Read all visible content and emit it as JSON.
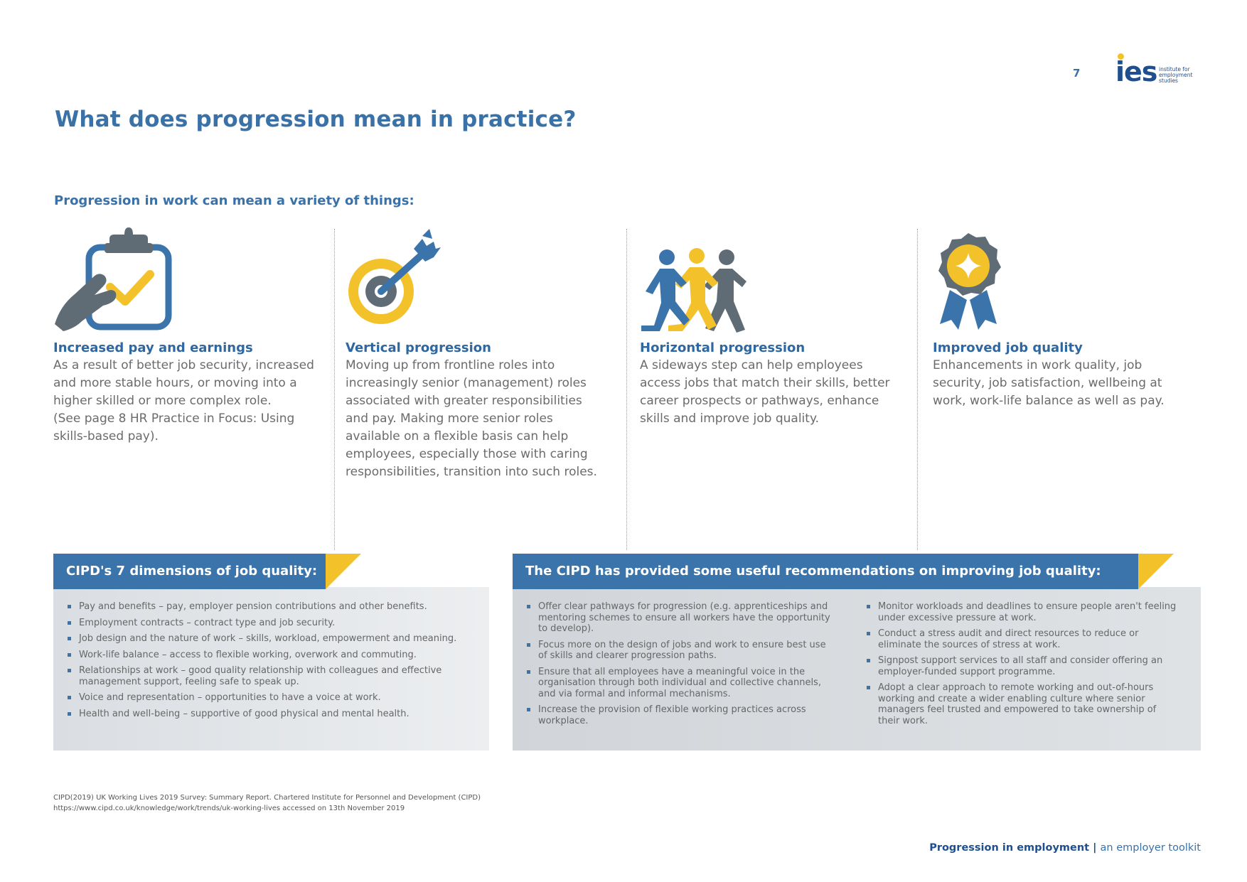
{
  "header": {
    "page_number": "7",
    "logo": {
      "letters": "ies",
      "subtitle": "institute for employment studies"
    }
  },
  "title": "What does progression mean in practice?",
  "intro": "Progression in work can mean a variety of things:",
  "columns": [
    {
      "icon": "clipboard-check-icon",
      "heading": "Increased pay and earnings",
      "body": [
        "As a result of better job security, increased and more stable hours, or moving into a higher skilled or more complex role.",
        "(See page 8 HR Practice in Focus: Using skills-based pay)."
      ]
    },
    {
      "icon": "target-arrow-icon",
      "heading": "Vertical progression",
      "body": [
        "Moving up from frontline roles into increasingly senior (management) roles associated with greater responsibilities and pay. Making more senior roles available on a flexible basis can help employees, especially those with caring responsibilities, transition into such roles."
      ]
    },
    {
      "icon": "people-running-icon",
      "heading": "Horizontal progression",
      "body": [
        "A sideways step can help employees access jobs that match their skills, better career prospects or pathways, enhance skills and improve job quality."
      ]
    },
    {
      "icon": "award-rosette-icon",
      "heading": "Improved job quality",
      "body": [
        "Enhancements in work quality, job security, job satisfaction, wellbeing at work, work-life balance as well as pay."
      ]
    }
  ],
  "dimensions_box": {
    "title": "CIPD's 7 dimensions of job quality:",
    "items": [
      "Pay and benefits – pay, employer pension contributions and other benefits.",
      "Employment  contracts – contract type and job security.",
      "Job design and the nature of work – skills, workload, empowerment and meaning.",
      "Work-life balance – access to flexible working, overwork and commuting.",
      "Relationships at work – good quality relationship with colleagues and effective management support, feeling safe to speak up.",
      "Voice and representation – opportunities to have a voice at work.",
      "Health and well-being – supportive of good physical and mental health."
    ]
  },
  "recommendations_box": {
    "title": "The CIPD has provided some useful recommendations on improving job quality:",
    "left_items": [
      "Offer clear pathways for progression (e.g. apprenticeships and mentoring schemes to ensure all workers have the opportunity to develop).",
      "Focus more on the design of jobs and work to ensure best use of skills and clearer progression paths.",
      "Ensure that all employees have a meaningful voice in the organisation through both individual and collective channels, and via formal and informal mechanisms.",
      "Increase the provision of flexible working practices across workplace."
    ],
    "right_items": [
      "Monitor workloads and deadlines to ensure people aren't feeling under excessive pressure at work.",
      "Conduct a stress audit and direct resources to reduce or eliminate the sources of stress at work.",
      "Signpost support services to all staff and consider offering an employer-funded support programme.",
      "Adopt a clear approach to remote working and out-of-hours working and create a wider enabling culture where senior managers feel trusted and empowered to take ownership of their work."
    ]
  },
  "citation": {
    "line1": "CIPD(2019) UK Working Lives 2019 Survey: Summary Report. Chartered Institute for Personnel and Development (CIPD)",
    "line2": "https://www.cipd.co.uk/knowledge/work/trends/uk-working-lives accessed on 13th November 2019"
  },
  "footer": {
    "bold": "Progression in employment",
    "separator": " | ",
    "rest": "an employer toolkit"
  },
  "colors": {
    "brand_blue": "#3a74ab",
    "dark_blue": "#1f4f8f",
    "accent_yellow": "#f3c22b",
    "icon_grey": "#5f6b75",
    "box_bg": "#e6e8eb",
    "box_bg_dark": "#d3d7db"
  }
}
